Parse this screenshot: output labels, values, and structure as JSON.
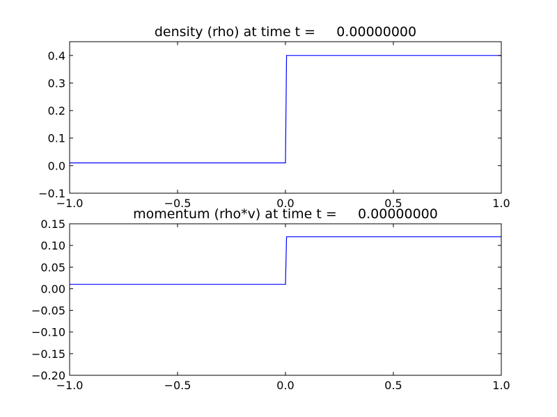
{
  "chart_data": [
    {
      "type": "line",
      "title": "density (rho) at time t =     0.00000000",
      "xlabel": "",
      "ylabel": "",
      "xlim": [
        -1.0,
        1.0
      ],
      "ylim": [
        -0.1,
        0.45
      ],
      "xticks": [
        -1.0,
        -0.5,
        0.0,
        0.5,
        1.0
      ],
      "xtick_labels": [
        "−1.0",
        "−0.5",
        "0.0",
        "0.5",
        "1.0"
      ],
      "yticks": [
        -0.1,
        0.0,
        0.1,
        0.2,
        0.3,
        0.4
      ],
      "ytick_labels": [
        "−0.1",
        "0.0",
        "0.1",
        "0.2",
        "0.3",
        "0.4"
      ],
      "grid": false,
      "series": [
        {
          "color": "#0000ff",
          "x": [
            -1.0,
            0.0,
            0.005,
            1.0
          ],
          "y": [
            0.01,
            0.01,
            0.4,
            0.4
          ]
        }
      ]
    },
    {
      "type": "line",
      "title": "momentum (rho*v) at time t =     0.00000000",
      "xlabel": "",
      "ylabel": "",
      "xlim": [
        -1.0,
        1.0
      ],
      "ylim": [
        -0.2,
        0.15
      ],
      "xticks": [
        -1.0,
        -0.5,
        0.0,
        0.5,
        1.0
      ],
      "xtick_labels": [
        "−1.0",
        "−0.5",
        "0.0",
        "0.5",
        "1.0"
      ],
      "yticks": [
        -0.2,
        -0.15,
        -0.1,
        -0.05,
        0.0,
        0.05,
        0.1,
        0.15
      ],
      "ytick_labels": [
        "−0.20",
        "−0.15",
        "−0.10",
        "−0.05",
        "0.00",
        "0.05",
        "0.10",
        "0.15"
      ],
      "grid": false,
      "series": [
        {
          "color": "#0000ff",
          "x": [
            -1.0,
            0.0,
            0.005,
            1.0
          ],
          "y": [
            0.01,
            0.01,
            0.12,
            0.12
          ]
        }
      ]
    }
  ]
}
